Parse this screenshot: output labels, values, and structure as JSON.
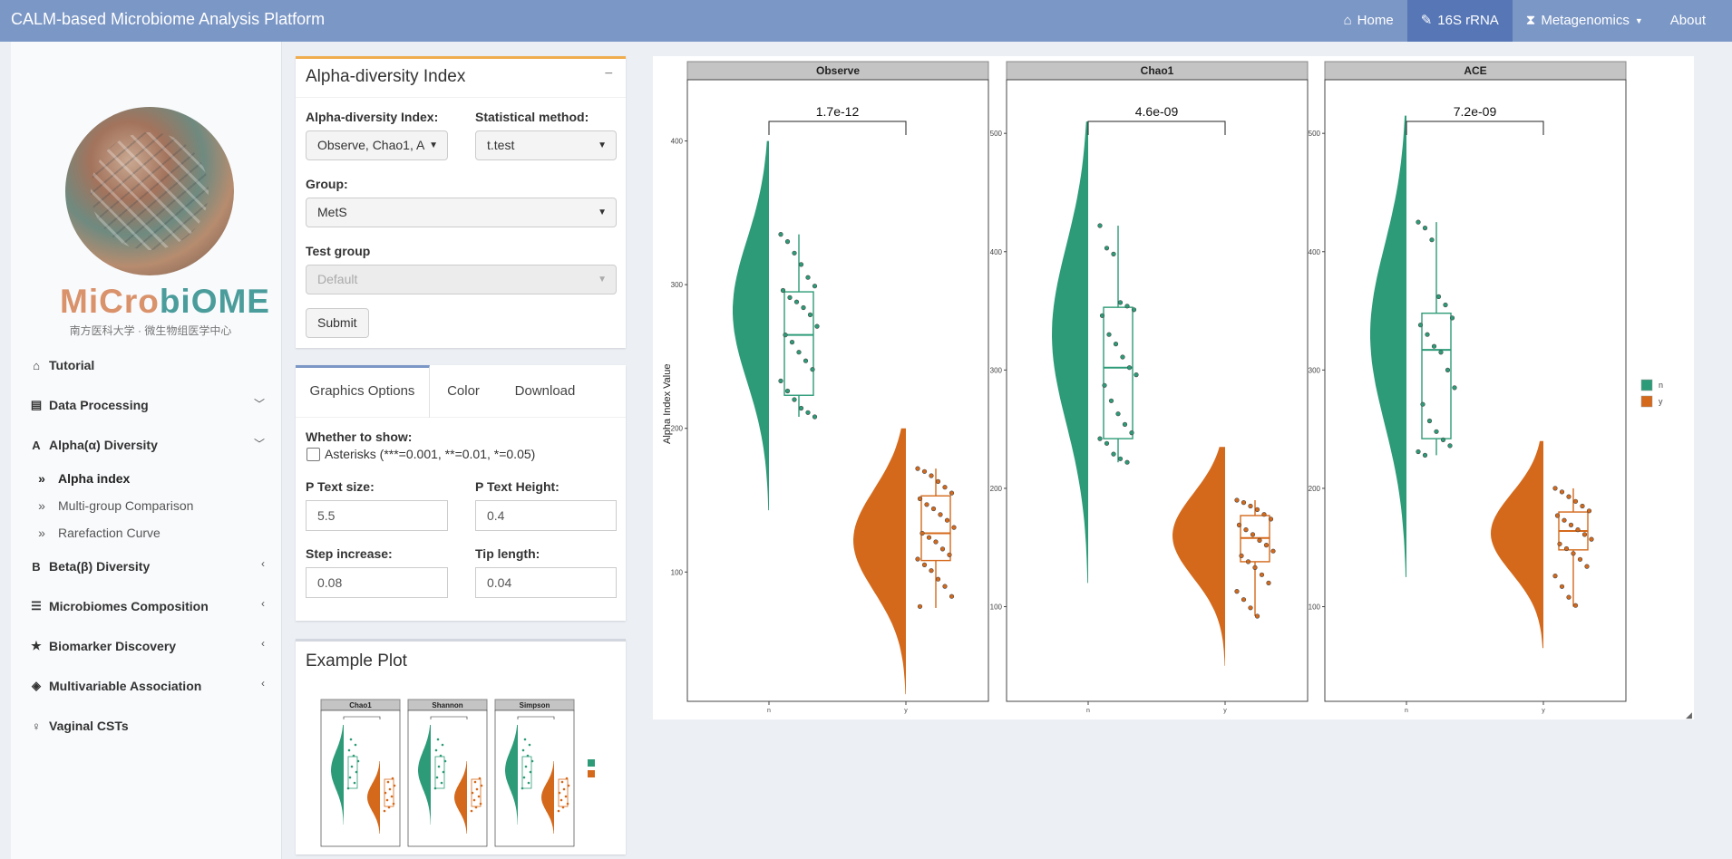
{
  "app": {
    "title": "CALM-based Microbiome Analysis Platform"
  },
  "nav": {
    "home": "Home",
    "rrna": "16S rRNA",
    "meta": "Metagenomics",
    "about": "About"
  },
  "logo": {
    "word_a": "MiCro",
    "word_b": "biOME",
    "subtitle": "南方医科大学 · 微生物组医学中心"
  },
  "sidebar": {
    "tutorial": "Tutorial",
    "data_processing": "Data Processing",
    "alpha": "Alpha(α) Diversity",
    "alpha_index": "Alpha index",
    "multi_group": "Multi-group Comparison",
    "rarefaction": "Rarefaction Curve",
    "beta": "Beta(β) Diversity",
    "composition": "Microbiomes Composition",
    "biomarker": "Biomarker Discovery",
    "multivariable": "Multivariable Association",
    "vaginal": "Vaginal CSTs"
  },
  "form": {
    "title": "Alpha-diversity Index",
    "collapse": "−",
    "index_label": "Alpha-diversity Index:",
    "index_value": "Observe, Chao1, A",
    "method_label": "Statistical method:",
    "method_value": "t.test",
    "group_label": "Group:",
    "group_value": "MetS",
    "test_label": "Test group",
    "test_value": "Default",
    "submit": "Submit"
  },
  "options": {
    "tabs": [
      "Graphics Options",
      "Color",
      "Download"
    ],
    "show_label": "Whether to show:",
    "asterisks": "Asterisks (***=0.001, **=0.01, *=0.05)",
    "p_size_label": "P Text size:",
    "p_size": "5.5",
    "p_height_label": "P Text Height:",
    "p_height": "0.4",
    "step_label": "Step increase:",
    "step": "0.08",
    "tip_label": "Tip length:",
    "tip": "0.04"
  },
  "example": {
    "title": "Example Plot",
    "panels": [
      "Chao1",
      "Shannon",
      "Simpson"
    ]
  },
  "colors": {
    "n": "#2d9b78",
    "y": "#d4691b",
    "strip": "#c4c4c4",
    "navbar": "#7b97c6"
  },
  "chart_data": {
    "type": "raincloud",
    "ylabel": "Alpha Index Value",
    "categories": [
      "n",
      "y"
    ],
    "legend": [
      "n",
      "y"
    ],
    "legend_position": "right",
    "panels": [
      {
        "name": "Observe",
        "p_value": "1.7e-12",
        "yticks": [
          100,
          200,
          300,
          400
        ],
        "ylim": [
          10,
          430
        ],
        "n": {
          "q1": 223,
          "median": 265,
          "q3": 295,
          "min": 208,
          "max": 335,
          "density_peak": 282,
          "density_range": [
            143,
            400
          ],
          "points": [
            335,
            330,
            322,
            314,
            305,
            299,
            296,
            291,
            288,
            284,
            279,
            271,
            265,
            260,
            253,
            247,
            241,
            233,
            226,
            220,
            214,
            211,
            208
          ]
        },
        "y": {
          "q1": 108,
          "median": 127,
          "q3": 153,
          "min": 75,
          "max": 172,
          "density_peak": 122,
          "density_range": [
            15,
            200
          ],
          "points": [
            172,
            170,
            167,
            163,
            159,
            155,
            151,
            147,
            144,
            140,
            136,
            131,
            127,
            124,
            121,
            116,
            112,
            109,
            105,
            101,
            95,
            90,
            83,
            76
          ]
        }
      },
      {
        "name": "Chao1",
        "p_value": "4.6e-09",
        "yticks": [
          100,
          200,
          300,
          400,
          500
        ],
        "ylim": [
          20,
          530
        ],
        "n": {
          "q1": 242,
          "median": 302,
          "q3": 353,
          "min": 222,
          "max": 422,
          "density_peak": 330,
          "density_range": [
            120,
            510
          ],
          "points": [
            422,
            403,
            398,
            357,
            354,
            351,
            346,
            330,
            322,
            311,
            302,
            296,
            287,
            274,
            263,
            254,
            247,
            242,
            238,
            229,
            225,
            222
          ]
        },
        "y": {
          "q1": 138,
          "median": 158,
          "q3": 177,
          "min": 92,
          "max": 190,
          "density_peak": 160,
          "density_range": [
            50,
            235
          ],
          "points": [
            190,
            188,
            185,
            182,
            178,
            174,
            169,
            165,
            161,
            156,
            152,
            147,
            143,
            138,
            133,
            127,
            120,
            113,
            106,
            99,
            92
          ]
        }
      },
      {
        "name": "ACE",
        "p_value": "7.2e-09",
        "yticks": [
          100,
          200,
          300,
          400,
          500
        ],
        "ylim": [
          20,
          530
        ],
        "n": {
          "q1": 242,
          "median": 317,
          "q3": 348,
          "min": 228,
          "max": 425,
          "density_peak": 330,
          "density_range": [
            125,
            515
          ],
          "points": [
            425,
            420,
            410,
            362,
            355,
            344,
            338,
            330,
            320,
            315,
            300,
            285,
            271,
            257,
            248,
            241,
            236,
            231,
            228
          ]
        },
        "y": {
          "q1": 148,
          "median": 164,
          "q3": 180,
          "min": 100,
          "max": 200,
          "density_peak": 162,
          "density_range": [
            65,
            240
          ],
          "points": [
            200,
            197,
            193,
            189,
            185,
            181,
            177,
            173,
            169,
            165,
            161,
            157,
            153,
            149,
            145,
            140,
            134,
            126,
            117,
            108,
            101
          ]
        }
      }
    ]
  }
}
